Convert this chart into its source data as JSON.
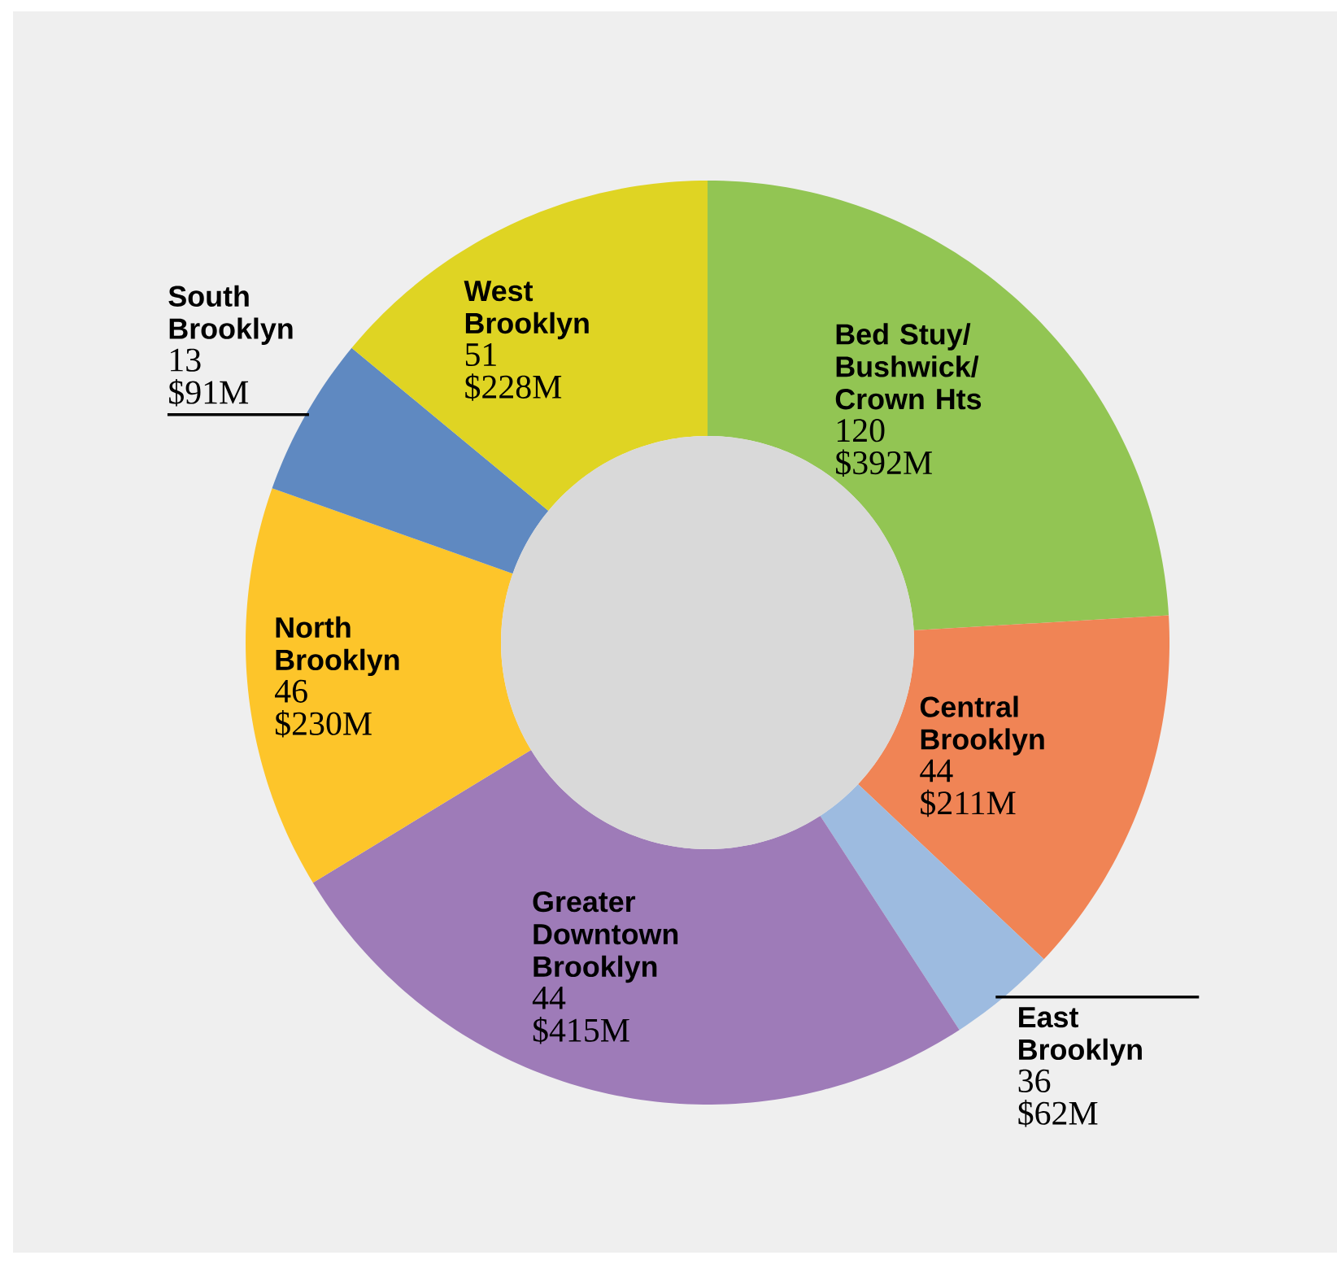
{
  "chart_data": {
    "type": "donut",
    "categories": [
      "Bed Stuy/ Bushwick/ Crown Hts",
      "Central Brooklyn",
      "East Brooklyn",
      "Greater Downtown Brooklyn",
      "North Brooklyn",
      "South Brooklyn",
      "West Brooklyn"
    ],
    "values": [
      392,
      211,
      62,
      415,
      230,
      91,
      228
    ],
    "colors": [
      "#92c553",
      "#f08455",
      "#9dbbe0",
      "#9e7bb8",
      "#fdc52a",
      "#5f89c1",
      "#dfd423"
    ],
    "value_labels": [
      "$392M",
      "$211M",
      "$62M",
      "$415M",
      "$230M",
      "$91M",
      "$228M"
    ],
    "annotations": [
      "120",
      "44",
      "36",
      "44",
      "46",
      "13",
      "51"
    ]
  }
}
